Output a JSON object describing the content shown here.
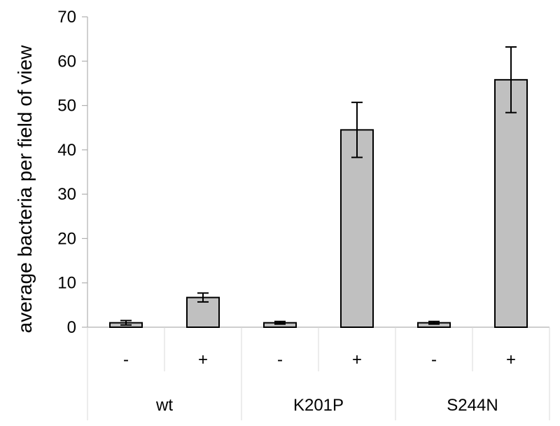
{
  "chart_data": {
    "type": "bar",
    "ylabel": "average bacteria per field of view",
    "xlabel": "",
    "ylim": [
      0,
      70
    ],
    "yticks": [
      0,
      10,
      20,
      30,
      40,
      50,
      60,
      70
    ],
    "groups": [
      "wt",
      "K201P",
      "S244N"
    ],
    "categories": [
      "-",
      "+",
      "-",
      "+",
      "-",
      "+"
    ],
    "values": [
      1.0,
      6.7,
      1.0,
      44.5,
      1.0,
      55.8
    ],
    "errors": [
      0.5,
      1.0,
      0.3,
      6.2,
      0.3,
      7.4
    ],
    "bar_color": "#c0c0c0",
    "grid": false
  }
}
